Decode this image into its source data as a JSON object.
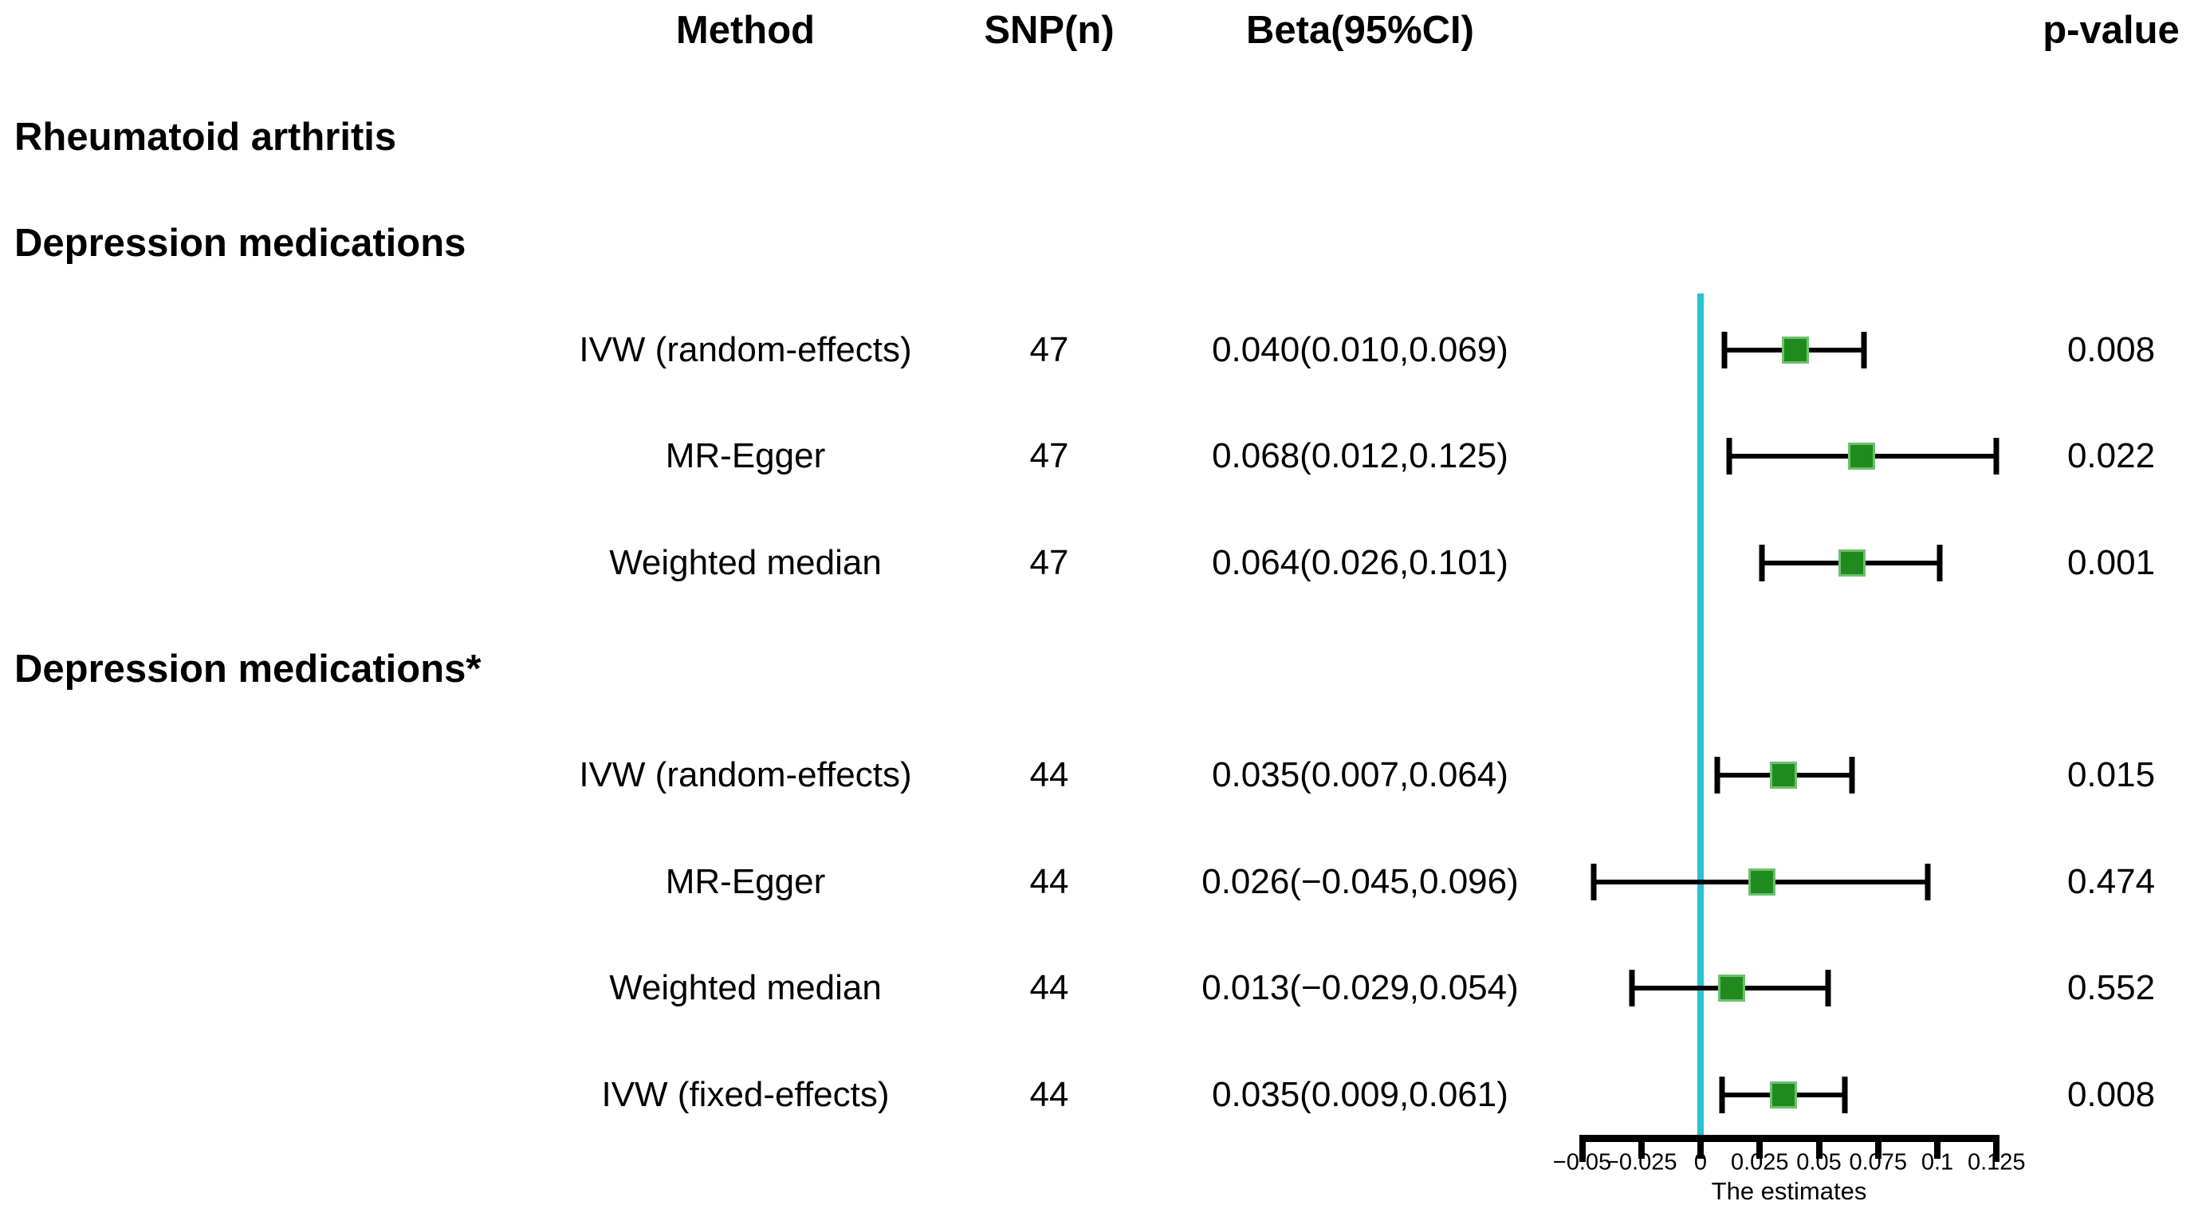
{
  "chart_data": {
    "type": "scatter",
    "subtype": "forest-plot",
    "columns": {
      "method": "Method",
      "snp": "SNP(n)",
      "beta": "Beta(95%CI)",
      "pvalue": "p-value"
    },
    "groups": [
      {
        "label": "Rheumatoid arthritis",
        "rows": []
      },
      {
        "label": "Depression medications",
        "rows": [
          {
            "method": "IVW (random-effects)",
            "snp": "47",
            "beta_text": "0.040(0.010,0.069)",
            "beta": 0.04,
            "ci_low": 0.01,
            "ci_high": 0.069,
            "pvalue": "0.008"
          },
          {
            "method": "MR-Egger",
            "snp": "47",
            "beta_text": "0.068(0.012,0.125)",
            "beta": 0.068,
            "ci_low": 0.012,
            "ci_high": 0.125,
            "pvalue": "0.022"
          },
          {
            "method": "Weighted median",
            "snp": "47",
            "beta_text": "0.064(0.026,0.101)",
            "beta": 0.064,
            "ci_low": 0.026,
            "ci_high": 0.101,
            "pvalue": "0.001"
          }
        ]
      },
      {
        "label": "Depression medications*",
        "rows": [
          {
            "method": "IVW (random-effects)",
            "snp": "44",
            "beta_text": "0.035(0.007,0.064)",
            "beta": 0.035,
            "ci_low": 0.007,
            "ci_high": 0.064,
            "pvalue": "0.015"
          },
          {
            "method": "MR-Egger",
            "snp": "44",
            "beta_text": "0.026(−0.045,0.096)",
            "beta": 0.026,
            "ci_low": -0.045,
            "ci_high": 0.096,
            "pvalue": "0.474"
          },
          {
            "method": "Weighted median",
            "snp": "44",
            "beta_text": "0.013(−0.029,0.054)",
            "beta": 0.013,
            "ci_low": -0.029,
            "ci_high": 0.054,
            "pvalue": "0.552"
          },
          {
            "method": "IVW (fixed-effects)",
            "snp": "44",
            "beta_text": "0.035(0.009,0.061)",
            "beta": 0.035,
            "ci_low": 0.009,
            "ci_high": 0.061,
            "pvalue": "0.008"
          }
        ]
      }
    ],
    "axis": {
      "xlabel": "The estimates",
      "xlim": [
        -0.05,
        0.125
      ],
      "ticks": [
        -0.05,
        -0.025,
        0,
        0.025,
        0.05,
        0.075,
        0.1,
        0.125
      ],
      "tick_labels": [
        "−0.05",
        "−0.025",
        "0",
        "0.025",
        "0.05",
        "0.075",
        "0.1",
        "0.125"
      ],
      "zero_reference_line": 0
    },
    "colors": {
      "marker_fill": "#1f8b1f",
      "marker_edge": "#6fc06f",
      "ci_line": "#000000",
      "zero_line": "#2bc0d2",
      "text": "#000000",
      "background": "#ffffff"
    }
  }
}
